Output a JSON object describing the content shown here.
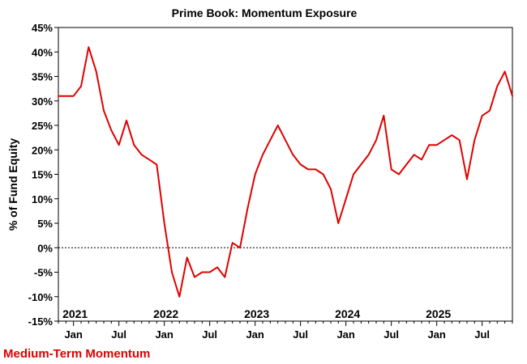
{
  "chart_data": {
    "type": "line",
    "title": "Prime Book: Momentum Exposure",
    "ylabel": "% of Fund Equity",
    "footnote": "Medium-Term Momentum",
    "ylim": [
      -15,
      45
    ],
    "xlim": [
      "2020-11",
      "2025-11"
    ],
    "y_ticks": [
      "45%",
      "40%",
      "35%",
      "30%",
      "25%",
      "20%",
      "15%",
      "10%",
      "5%",
      "0%",
      "-5%",
      "-10%",
      "-15%"
    ],
    "x_ticks": [
      "Jan",
      "Jul",
      "Jan",
      "Jul",
      "Jan",
      "Jul",
      "Jan",
      "Jul",
      "Jan",
      "Jul"
    ],
    "x_tick_dates": [
      "2021-01",
      "2021-07",
      "2022-01",
      "2022-07",
      "2023-01",
      "2023-07",
      "2024-01",
      "2024-07",
      "2025-01",
      "2025-07"
    ],
    "year_labels": [
      {
        "label": "2021",
        "date": "2021-01"
      },
      {
        "label": "2022",
        "date": "2022-01"
      },
      {
        "label": "2023",
        "date": "2023-01"
      },
      {
        "label": "2024",
        "date": "2024-01"
      },
      {
        "label": "2025",
        "date": "2025-01"
      }
    ],
    "reference_line": {
      "y": 0,
      "style": "dotted"
    },
    "line_color": "#e00000",
    "series": [
      {
        "x": [
          "2020-11",
          "2020-12",
          "2021-01",
          "2021-02",
          "2021-03",
          "2021-04",
          "2021-05",
          "2021-06",
          "2021-07",
          "2021-08",
          "2021-09",
          "2021-10",
          "2021-11",
          "2021-12",
          "2022-01",
          "2022-02",
          "2022-03",
          "2022-04",
          "2022-05",
          "2022-06",
          "2022-07",
          "2022-08",
          "2022-09",
          "2022-10",
          "2022-11",
          "2022-12",
          "2023-01",
          "2023-02",
          "2023-03",
          "2023-04",
          "2023-05",
          "2023-06",
          "2023-07",
          "2023-08",
          "2023-09",
          "2023-10",
          "2023-11",
          "2023-12",
          "2024-01",
          "2024-02",
          "2024-03",
          "2024-04",
          "2024-05",
          "2024-06",
          "2024-07",
          "2024-08",
          "2024-09",
          "2024-10",
          "2024-11",
          "2024-12",
          "2025-01",
          "2025-02",
          "2025-03",
          "2025-04",
          "2025-05",
          "2025-06",
          "2025-07",
          "2025-08",
          "2025-09",
          "2025-10",
          "2025-11"
        ],
        "values": [
          31,
          31,
          31,
          33,
          41,
          36,
          28,
          24,
          21,
          26,
          21,
          19,
          18,
          17,
          5,
          -5,
          -10,
          -2,
          -6,
          -5,
          -5,
          -4,
          -6,
          1,
          0,
          8,
          15,
          19,
          22,
          25,
          22,
          19,
          17,
          16,
          16,
          15,
          12,
          5,
          10,
          15,
          17,
          19,
          22,
          27,
          16,
          15,
          17,
          19,
          18,
          21,
          21,
          22,
          23,
          22,
          14,
          22,
          27,
          28,
          33,
          36,
          31
        ]
      }
    ]
  }
}
